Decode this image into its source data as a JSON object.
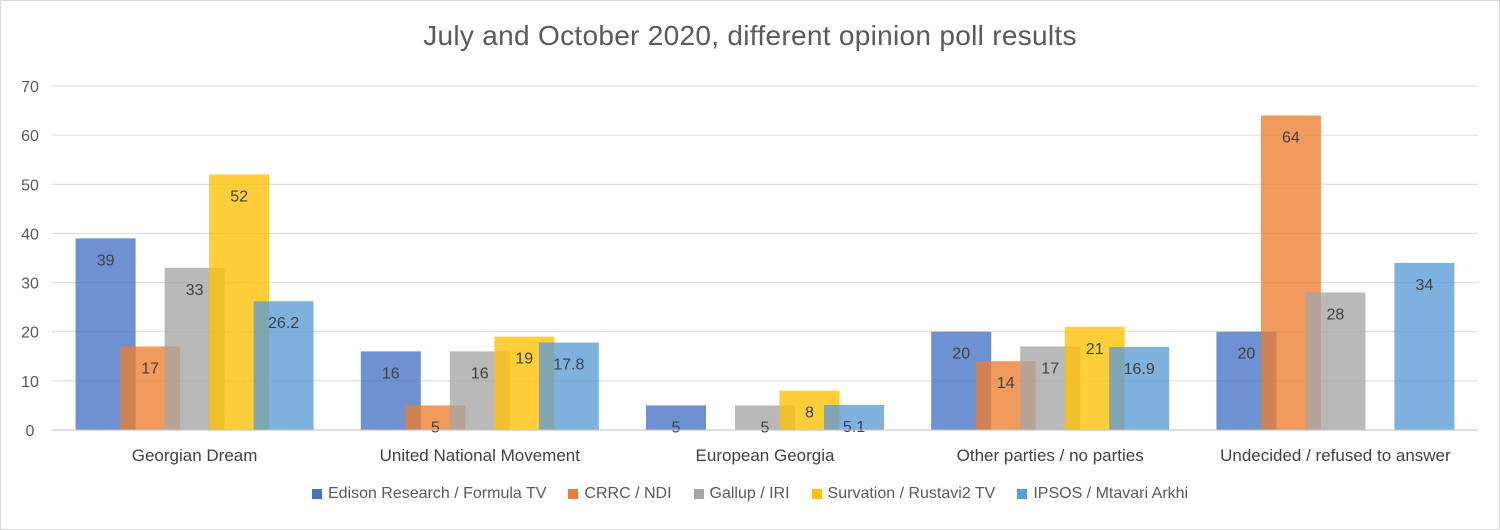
{
  "colors": {
    "Edison Research / Formula TV": "#4472C4",
    "CRRC / NDI": "#ED7D31",
    "Gallup / IRI": "#A5A5A5",
    "Survation / Rustavi2 TV": "#FFC000",
    "IPSOS / Mtavari Arkhi": "#5B9BD5"
  },
  "chart_data": {
    "type": "bar",
    "title": "July and October 2020, different opinion poll results",
    "xlabel": "",
    "ylabel": "",
    "ylim": [
      0,
      70
    ],
    "yticks": [
      "0",
      "10",
      "20",
      "30",
      "40",
      "50",
      "60",
      "70"
    ],
    "grid": true,
    "legend_position": "bottom",
    "categories": [
      "Georgian Dream",
      "United National Movement",
      "European Georgia",
      "Other parties / no parties",
      "Undecided / refused to answer"
    ],
    "series": [
      {
        "name": "Edison Research / Formula TV",
        "values": [
          39,
          16,
          5,
          20,
          20
        ],
        "labels": [
          "39",
          "16",
          "5",
          "20",
          "20"
        ]
      },
      {
        "name": "CRRC / NDI",
        "values": [
          17,
          5,
          0,
          14,
          64
        ],
        "labels": [
          "17",
          "5",
          "",
          "14",
          "64"
        ]
      },
      {
        "name": "Gallup / IRI",
        "values": [
          33,
          16,
          5,
          17,
          28
        ],
        "labels": [
          "33",
          "16",
          "5",
          "17",
          "28"
        ]
      },
      {
        "name": "Survation / Rustavi2 TV",
        "values": [
          52,
          19,
          8,
          21,
          0
        ],
        "labels": [
          "52",
          "19",
          "8",
          "21",
          ""
        ]
      },
      {
        "name": "IPSOS / Mtavari Arkhi",
        "values": [
          26.2,
          17.8,
          5.1,
          16.9,
          34
        ],
        "labels": [
          "26.2",
          "17.8",
          "5.1",
          "16.9",
          "34"
        ]
      }
    ]
  }
}
